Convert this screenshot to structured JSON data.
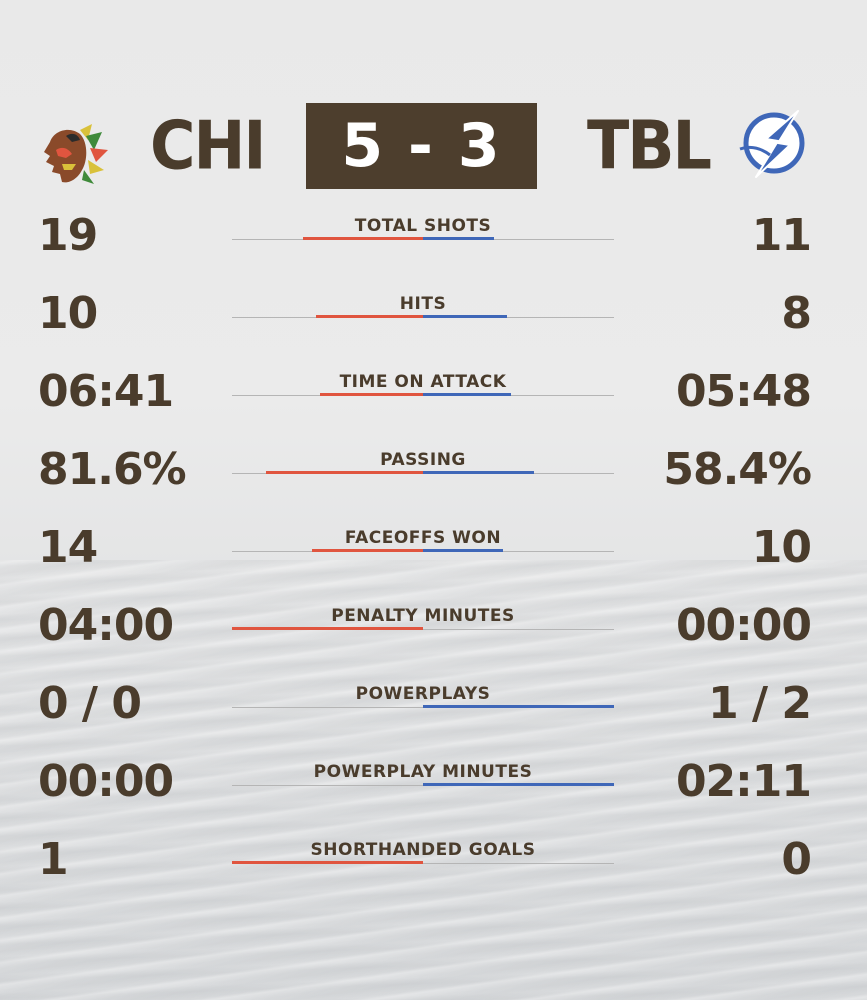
{
  "home": {
    "abbr": "CHI",
    "color": "#e0553f",
    "logo": "blackhawks-logo"
  },
  "away": {
    "abbr": "TBL",
    "color": "#3f67b8",
    "logo": "lightning-bolt-logo"
  },
  "score": {
    "text": "5 - 3",
    "home": 5,
    "away": 3
  },
  "stats": [
    {
      "label": "TOTAL SHOTS",
      "home": "19",
      "away": "11",
      "home_share": 0.63,
      "away_share": 0.37
    },
    {
      "label": "HITS",
      "home": "10",
      "away": "8",
      "home_share": 0.56,
      "away_share": 0.44
    },
    {
      "label": "TIME ON ATTACK",
      "home": "06:41",
      "away": "05:48",
      "home_share": 0.54,
      "away_share": 0.46
    },
    {
      "label": "PASSING",
      "home": "81.6%",
      "away": "58.4%",
      "home_share": 0.82,
      "away_share": 0.58
    },
    {
      "label": "FACEOFFS WON",
      "home": "14",
      "away": "10",
      "home_share": 0.58,
      "away_share": 0.42
    },
    {
      "label": "PENALTY MINUTES",
      "home": "04:00",
      "away": "00:00",
      "home_share": 1.0,
      "away_share": 0.0
    },
    {
      "label": "POWERPLAYS",
      "home": "0 / 0",
      "away": "1 / 2",
      "home_share": 0.0,
      "away_share": 1.0
    },
    {
      "label": "POWERPLAY MINUTES",
      "home": "00:00",
      "away": "02:11",
      "home_share": 0.0,
      "away_share": 1.0
    },
    {
      "label": "SHORTHANDED GOALS",
      "home": "1",
      "away": "0",
      "home_share": 1.0,
      "away_share": 0.0
    }
  ]
}
